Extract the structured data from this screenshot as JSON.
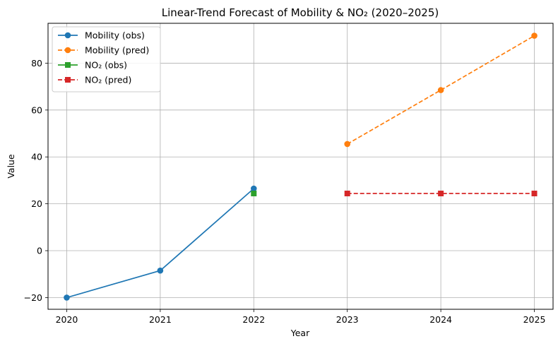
{
  "chart_data": {
    "type": "line",
    "title": "Linear-Trend Forecast of Mobility & NO₂ (2020–2025)",
    "xlabel": "Year",
    "ylabel": "Value",
    "xlim": [
      2019.8,
      2025.2
    ],
    "ylim": [
      -25,
      97
    ],
    "x_ticks": [
      2020,
      2021,
      2022,
      2023,
      2024,
      2025
    ],
    "y_ticks": [
      -20,
      0,
      20,
      40,
      60,
      80
    ],
    "grid": true,
    "legend_position": "top-left",
    "series": [
      {
        "name": "Mobility (obs)",
        "color": "#1f77b4",
        "linestyle": "solid",
        "marker": "circle",
        "x": [
          2020,
          2021,
          2022
        ],
        "y": [
          -20.0,
          -8.5,
          26.5
        ]
      },
      {
        "name": "Mobility (pred)",
        "color": "#ff7f0e",
        "linestyle": "dashed",
        "marker": "circle",
        "x": [
          2023,
          2024,
          2025
        ],
        "y": [
          45.5,
          68.5,
          91.7
        ]
      },
      {
        "name": "NO₂ (obs)",
        "color": "#2ca02c",
        "linestyle": "solid",
        "marker": "square",
        "x": [
          2022
        ],
        "y": [
          24.4
        ]
      },
      {
        "name": "NO₂ (pred)",
        "color": "#d62728",
        "linestyle": "dashed",
        "marker": "square",
        "x": [
          2023,
          2024,
          2025
        ],
        "y": [
          24.4,
          24.4,
          24.4
        ]
      }
    ]
  }
}
